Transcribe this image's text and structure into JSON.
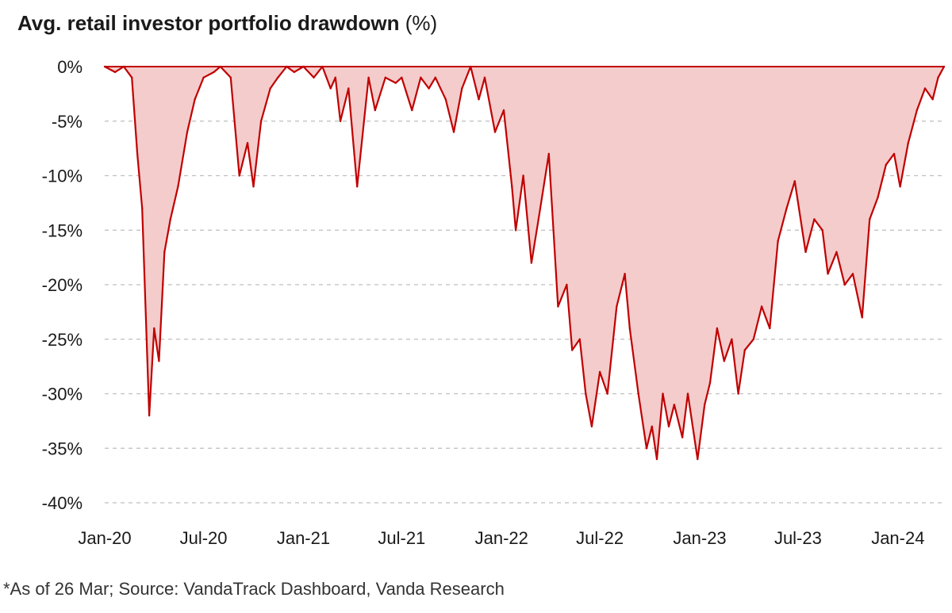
{
  "title_main": "Avg. retail investor portfolio drawdown",
  "title_unit": "(%)",
  "footnote": "*As of 26 Mar; Source: VandaTrack Dashboard, Vanda Research",
  "colors": {
    "line": "#c00000",
    "fill": "#f4cccc",
    "grid": "#bfbfbf",
    "text": "#1a1a1a"
  },
  "chart_data": {
    "type": "area",
    "title": "Avg. retail investor portfolio drawdown (%)",
    "xlabel": "",
    "ylabel": "",
    "ylim": [
      -40,
      0
    ],
    "yticks": [
      0,
      -5,
      -10,
      -15,
      -20,
      -25,
      -30,
      -35,
      -40
    ],
    "ytick_labels": [
      "0%",
      "-5%",
      "-10%",
      "-15%",
      "-20%",
      "-25%",
      "-30%",
      "-35%",
      "-40%"
    ],
    "xlim": [
      "2020-01-01",
      "2024-03-26"
    ],
    "xticks": [
      "2020-01-01",
      "2020-07-01",
      "2021-01-01",
      "2021-07-01",
      "2022-01-01",
      "2022-07-01",
      "2023-01-01",
      "2023-07-01",
      "2024-01-01"
    ],
    "xtick_labels": [
      "Jan-20",
      "Jul-20",
      "Jan-21",
      "Jul-21",
      "Jan-22",
      "Jul-22",
      "Jan-23",
      "Jul-23",
      "Jan-24"
    ],
    "grid": "horizontal dashed",
    "series": [
      {
        "x": [
          "2020-01-01",
          "2020-01-20",
          "2020-02-05",
          "2020-02-20",
          "2020-03-01",
          "2020-03-10",
          "2020-03-23",
          "2020-04-01",
          "2020-04-10",
          "2020-04-20",
          "2020-05-01",
          "2020-05-15",
          "2020-06-01",
          "2020-06-15",
          "2020-07-01",
          "2020-07-20",
          "2020-08-01",
          "2020-08-20",
          "2020-09-05",
          "2020-09-20",
          "2020-10-01",
          "2020-10-15",
          "2020-11-01",
          "2020-11-15",
          "2020-12-01",
          "2020-12-15",
          "2021-01-01",
          "2021-01-20",
          "2021-02-05",
          "2021-02-20",
          "2021-03-01",
          "2021-03-10",
          "2021-03-25",
          "2021-04-10",
          "2021-05-01",
          "2021-05-13",
          "2021-06-01",
          "2021-06-20",
          "2021-07-01",
          "2021-07-20",
          "2021-08-05",
          "2021-08-20",
          "2021-09-01",
          "2021-09-20",
          "2021-10-05",
          "2021-10-20",
          "2021-11-05",
          "2021-11-20",
          "2021-12-01",
          "2021-12-20",
          "2022-01-05",
          "2022-01-20",
          "2022-01-27",
          "2022-02-10",
          "2022-02-25",
          "2022-03-10",
          "2022-03-29",
          "2022-04-15",
          "2022-05-01",
          "2022-05-11",
          "2022-05-25",
          "2022-06-05",
          "2022-06-16",
          "2022-07-01",
          "2022-07-15",
          "2022-08-01",
          "2022-08-16",
          "2022-08-25",
          "2022-09-10",
          "2022-09-25",
          "2022-10-05",
          "2022-10-14",
          "2022-10-25",
          "2022-11-05",
          "2022-11-15",
          "2022-11-30",
          "2022-12-10",
          "2022-12-28",
          "2023-01-10",
          "2023-01-20",
          "2023-02-02",
          "2023-02-15",
          "2023-03-01",
          "2023-03-13",
          "2023-03-25",
          "2023-04-10",
          "2023-04-25",
          "2023-05-10",
          "2023-05-25",
          "2023-06-10",
          "2023-06-25",
          "2023-07-15",
          "2023-07-31",
          "2023-08-15",
          "2023-08-25",
          "2023-09-10",
          "2023-09-25",
          "2023-10-10",
          "2023-10-27",
          "2023-11-10",
          "2023-11-25",
          "2023-12-10",
          "2023-12-25",
          "2024-01-05",
          "2024-01-20",
          "2024-02-05",
          "2024-02-20",
          "2024-03-05",
          "2024-03-15",
          "2024-03-26"
        ],
        "y": [
          0,
          -0.5,
          0,
          -1,
          -8,
          -13,
          -32,
          -24,
          -27,
          -17,
          -14,
          -11,
          -6,
          -3,
          -1,
          -0.5,
          0,
          -1,
          -10,
          -7,
          -11,
          -5,
          -2,
          -1,
          0,
          -0.5,
          0,
          -1,
          0,
          -2,
          -1,
          -5,
          -2,
          -11,
          -1,
          -4,
          -1,
          -1.5,
          -1,
          -4,
          -1,
          -2,
          -1,
          -3,
          -6,
          -2,
          0,
          -3,
          -1,
          -6,
          -4,
          -11,
          -15,
          -10,
          -18,
          -14,
          -8,
          -22,
          -20,
          -26,
          -25,
          -30,
          -33,
          -28,
          -30,
          -22,
          -19,
          -24,
          -30,
          -35,
          -33,
          -36,
          -30,
          -33,
          -31,
          -34,
          -30,
          -36,
          -31,
          -29,
          -24,
          -27,
          -25,
          -30,
          -26,
          -25,
          -22,
          -24,
          -16,
          -13,
          -10.5,
          -17,
          -14,
          -15,
          -19,
          -17,
          -20,
          -19,
          -23,
          -14,
          -12,
          -9,
          -8,
          -11,
          -7,
          -4,
          -2,
          -3,
          -1,
          0
        ]
      }
    ]
  }
}
